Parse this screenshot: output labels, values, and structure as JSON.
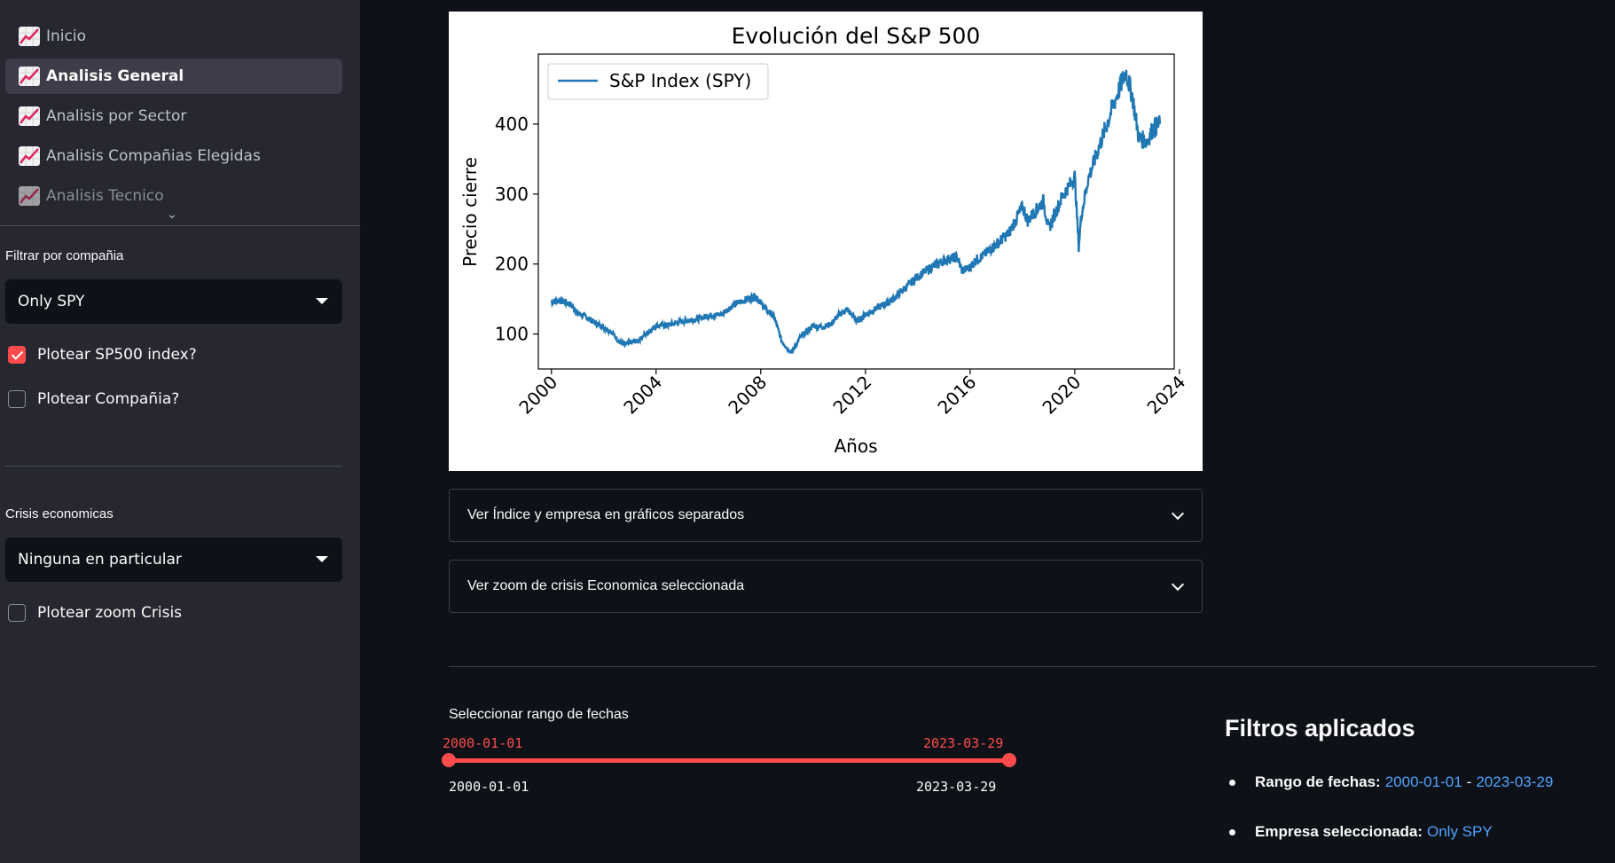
{
  "sidebar": {
    "nav": [
      {
        "label": "Inicio",
        "icon": "chart-increasing-icon"
      },
      {
        "label": "Analisis General",
        "icon": "chart-increasing-icon",
        "active": true
      },
      {
        "label": "Analisis por Sector",
        "icon": "chart-increasing-icon"
      },
      {
        "label": "Analisis Compañias Elegidas",
        "icon": "chart-increasing-icon"
      },
      {
        "label": "Analisis Tecnico",
        "icon": "chart-increasing-icon"
      }
    ],
    "company_filter": {
      "label": "Filtrar por compañia",
      "value": "Only SPY"
    },
    "checkbox_sp500": {
      "label": "Plotear SP500 index?",
      "checked": true
    },
    "checkbox_company": {
      "label": "Plotear Compañia?",
      "checked": false
    },
    "crisis": {
      "label": "Crisis economicas",
      "value": "Ninguna en particular"
    },
    "checkbox_zoom": {
      "label": "Plotear zoom Crisis",
      "checked": false
    }
  },
  "main": {
    "expander_1": "Ver Índice y empresa en gráficos separados",
    "expander_2": "Ver zoom de crisis Economica seleccionada",
    "date_slider": {
      "label": "Seleccionar rango de fechas",
      "start": "2000-01-01",
      "end": "2023-03-29",
      "min": "2000-01-01",
      "max": "2023-03-29"
    },
    "filters": {
      "title": "Filtros aplicados",
      "range_label": "Rango de fechas:",
      "range_start": "2000-01-01",
      "range_sep": "-",
      "range_end": "2023-03-29",
      "company_label": "Empresa seleccionada:",
      "company_value": "Only SPY"
    }
  },
  "colors": {
    "accent": "#ff4b4b",
    "line": "#1f77b4",
    "link": "#4fa3ff"
  },
  "chart_data": {
    "type": "line",
    "title": "Evolución del S&P 500",
    "xlabel": "Años",
    "ylabel": "Precio cierre",
    "xlim": [
      1999.5,
      2023.8
    ],
    "ylim": [
      50,
      500
    ],
    "xticks": [
      2000,
      2004,
      2008,
      2012,
      2016,
      2020,
      2024
    ],
    "yticks": [
      100,
      200,
      300,
      400
    ],
    "legend_position": "top-left",
    "series": [
      {
        "name": "S&P Index (SPY)",
        "x": [
          2000.0,
          2000.3,
          2000.7,
          2001.0,
          2001.3,
          2001.7,
          2002.0,
          2002.3,
          2002.6,
          2002.8,
          2003.0,
          2003.3,
          2003.6,
          2004.0,
          2004.5,
          2005.0,
          2005.5,
          2006.0,
          2006.5,
          2007.0,
          2007.5,
          2007.8,
          2008.2,
          2008.5,
          2008.8,
          2009.0,
          2009.2,
          2009.5,
          2010.0,
          2010.4,
          2010.7,
          2011.0,
          2011.3,
          2011.7,
          2012.0,
          2012.5,
          2013.0,
          2013.5,
          2014.0,
          2014.5,
          2015.0,
          2015.5,
          2015.7,
          2016.0,
          2016.2,
          2016.5,
          2017.0,
          2017.5,
          2018.0,
          2018.2,
          2018.8,
          2019.0,
          2019.5,
          2020.0,
          2020.15,
          2020.25,
          2020.5,
          2021.0,
          2021.5,
          2021.95,
          2022.2,
          2022.45,
          2022.75,
          2023.0,
          2023.25
        ],
        "values": [
          146,
          148,
          143,
          130,
          125,
          115,
          110,
          103,
          88,
          85,
          88,
          90,
          100,
          112,
          113,
          118,
          121,
          126,
          128,
          143,
          150,
          154,
          135,
          125,
          90,
          80,
          74,
          95,
          112,
          110,
          115,
          128,
          135,
          118,
          128,
          138,
          148,
          165,
          182,
          195,
          205,
          210,
          190,
          195,
          205,
          212,
          228,
          245,
          282,
          262,
          290,
          250,
          295,
          325,
          225,
          270,
          320,
          375,
          430,
          475,
          440,
          380,
          375,
          395,
          400
        ]
      }
    ]
  }
}
